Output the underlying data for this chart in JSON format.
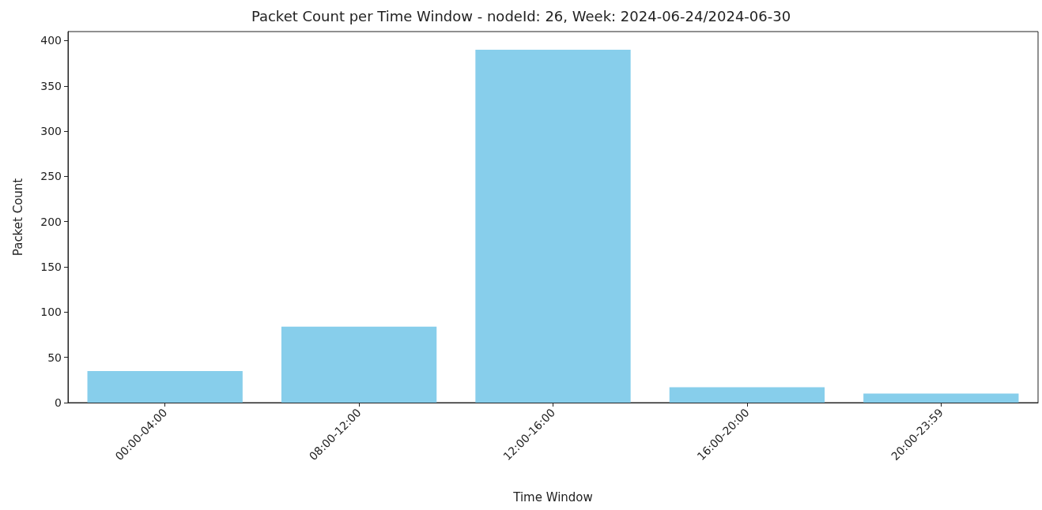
{
  "chart_data": {
    "type": "bar",
    "title": "Packet Count per Time Window - nodeId: 26, Week: 2024-06-24/2024-06-30",
    "xlabel": "Time Window",
    "ylabel": "Packet Count",
    "categories": [
      "00:00-04:00",
      "08:00-12:00",
      "12:00-16:00",
      "16:00-20:00",
      "20:00-23:59"
    ],
    "values": [
      35,
      84,
      390,
      17,
      10
    ],
    "color": "#87ceeb",
    "ylim": [
      0,
      410
    ],
    "yticks": [
      0,
      50,
      100,
      150,
      200,
      250,
      300,
      350,
      400
    ]
  }
}
